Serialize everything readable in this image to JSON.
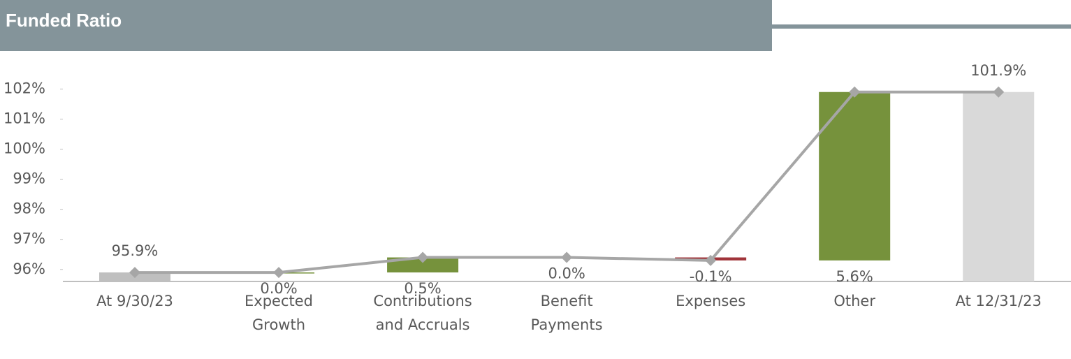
{
  "chart_data": {
    "type": "waterfall",
    "title": "Funded Ratio",
    "categories": [
      "At 9/30/23",
      "Expected Growth",
      "Contributions and Accruals",
      "Benefit Payments",
      "Expenses",
      "Other",
      "At 12/31/23"
    ],
    "values": [
      95.9,
      0.0,
      0.5,
      0.0,
      -0.1,
      5.6,
      101.9
    ],
    "value_labels": [
      "95.9%",
      "0.0%",
      "0.5%",
      "0.0%",
      "-0.1%",
      "5.6%",
      "101.9%"
    ],
    "totals": [
      true,
      false,
      false,
      false,
      false,
      false,
      true
    ],
    "colors": {
      "start": "#bfbfbf",
      "end": "#d9d9d9",
      "increase": "#76923c",
      "decrease": "#a0343a",
      "line": "#a6a6a6"
    },
    "ylim": [
      95.6,
      102.8
    ],
    "yticks": [
      {
        "value": 96,
        "label": "96%"
      },
      {
        "value": 97,
        "label": "97%"
      },
      {
        "value": 98,
        "label": "98%"
      },
      {
        "value": 99,
        "label": "99%"
      },
      {
        "value": 100,
        "label": "100%"
      },
      {
        "value": 101,
        "label": "101%"
      },
      {
        "value": 102,
        "label": "102%"
      }
    ]
  }
}
